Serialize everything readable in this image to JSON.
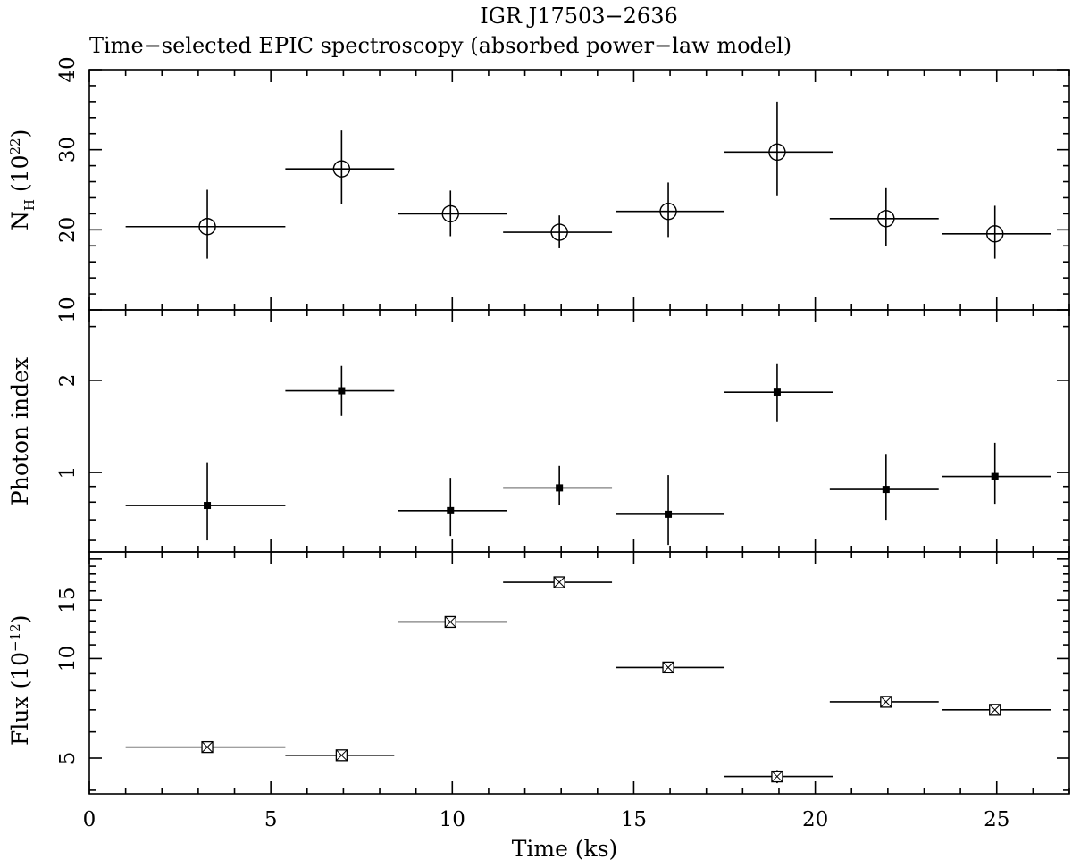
{
  "chart_data": {
    "type": "scatter",
    "title": "IGR J17503−2636",
    "subtitle": "Time−selected EPIC spectroscopy (absorbed power−law model)",
    "xlabel": "Time (ks)",
    "xlim": [
      0,
      27
    ],
    "xticks": [
      0,
      5,
      10,
      15,
      20,
      25
    ],
    "x": [
      3.25,
      6.95,
      9.95,
      12.95,
      15.95,
      18.95,
      21.95,
      24.95
    ],
    "x_err_low": [
      2.25,
      1.55,
      1.45,
      1.55,
      1.45,
      1.45,
      1.55,
      1.45
    ],
    "x_err_high": [
      2.15,
      1.45,
      1.55,
      1.45,
      1.55,
      1.55,
      1.45,
      1.55
    ],
    "panels": [
      {
        "name": "nh",
        "ylabel_main": "N",
        "ylabel_sub": "H",
        "ylabel_unit_open": " (10",
        "ylabel_unit_exp": "22",
        "ylabel_unit_close": ")",
        "scale": "linear",
        "ylim": [
          10,
          40
        ],
        "yticks": [
          10,
          20,
          30,
          40
        ],
        "marker": "open-circle",
        "values": [
          20.4,
          27.6,
          22.0,
          19.7,
          22.3,
          29.7,
          21.4,
          19.5
        ],
        "err_low": [
          4.0,
          4.4,
          2.8,
          2.0,
          3.2,
          5.4,
          3.4,
          3.1
        ],
        "err_high": [
          4.6,
          4.8,
          2.9,
          2.1,
          3.6,
          6.3,
          3.9,
          3.5
        ]
      },
      {
        "name": "photon-index",
        "ylabel": "Photon index",
        "scale": "log",
        "ylim": [
          0.55,
          3.4
        ],
        "yticks": [
          1,
          2
        ],
        "marker": "filled-square",
        "values": [
          0.78,
          1.85,
          0.75,
          0.89,
          0.73,
          1.83,
          0.88,
          0.97
        ],
        "err_low": [
          0.18,
          0.32,
          0.13,
          0.11,
          0.15,
          0.37,
          0.18,
          0.18
        ],
        "err_high": [
          0.3,
          0.38,
          0.21,
          0.16,
          0.25,
          0.43,
          0.27,
          0.28
        ]
      },
      {
        "name": "flux",
        "ylabel_main": "Flux (10",
        "ylabel_exp": "−12",
        "ylabel_close": ")",
        "scale": "log",
        "ylim": [
          3.9,
          21
        ],
        "yticks": [
          5,
          10,
          15
        ],
        "marker": "open-square-cross",
        "values": [
          5.4,
          5.1,
          12.9,
          17.0,
          9.4,
          4.4,
          7.4,
          7.0
        ],
        "err_low": [
          0.2,
          0.2,
          0.4,
          0.6,
          0.3,
          0.2,
          0.25,
          0.2
        ],
        "err_high": [
          0.2,
          0.2,
          0.4,
          0.6,
          0.3,
          0.2,
          0.25,
          0.2
        ]
      }
    ]
  }
}
